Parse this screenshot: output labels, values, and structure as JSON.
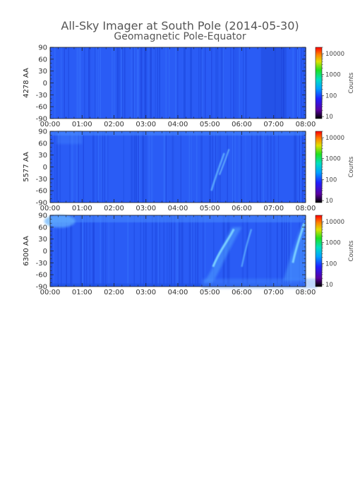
{
  "figure": {
    "title": "All-Sky Imager at South Pole (2014-05-30)",
    "subtitle": "Geomagnetic Pole-Equator"
  },
  "chart_data": [
    {
      "type": "heatmap",
      "ylabel": "4278 AA",
      "x_ticks": [
        "00:00",
        "01:00",
        "02:00",
        "03:00",
        "04:00",
        "05:00",
        "06:00",
        "07:00",
        "08:00"
      ],
      "y_ticks": [
        90,
        60,
        30,
        0,
        -30,
        -60,
        -90
      ],
      "xlim": [
        "00:00",
        "08:00"
      ],
      "ylim": [
        -90,
        90
      ],
      "colorbar": {
        "label": "Counts",
        "ticks": [
          10,
          100,
          1000,
          10000
        ],
        "scale": "log"
      }
    },
    {
      "type": "heatmap",
      "ylabel": "5577 AA",
      "x_ticks": [
        "00:00",
        "01:00",
        "02:00",
        "03:00",
        "04:00",
        "05:00",
        "06:00",
        "07:00",
        "08:00"
      ],
      "y_ticks": [
        90,
        60,
        30,
        0,
        -30,
        -60,
        -90
      ],
      "xlim": [
        "00:00",
        "08:00"
      ],
      "ylim": [
        -90,
        90
      ],
      "colorbar": {
        "label": "Counts",
        "ticks": [
          10,
          100,
          1000,
          10000
        ],
        "scale": "log"
      }
    },
    {
      "type": "heatmap",
      "ylabel": "6300 AA",
      "x_ticks": [
        "00:00",
        "01:00",
        "02:00",
        "03:00",
        "04:00",
        "05:00",
        "06:00",
        "07:00",
        "08:00"
      ],
      "y_ticks": [
        90,
        60,
        30,
        0,
        -30,
        -60,
        -90
      ],
      "xlim": [
        "00:00",
        "08:00"
      ],
      "ylim": [
        -90,
        90
      ],
      "colorbar": {
        "label": "Counts",
        "ticks": [
          10,
          100,
          1000,
          10000
        ],
        "scale": "log"
      }
    }
  ],
  "colors": {
    "background_field": "#2a5cf5",
    "colorbar": [
      "#000000",
      "#5a00a0",
      "#2020ff",
      "#00a0ff",
      "#00e0c0",
      "#20e020",
      "#e0e000",
      "#ff8000",
      "#ff0000"
    ]
  }
}
